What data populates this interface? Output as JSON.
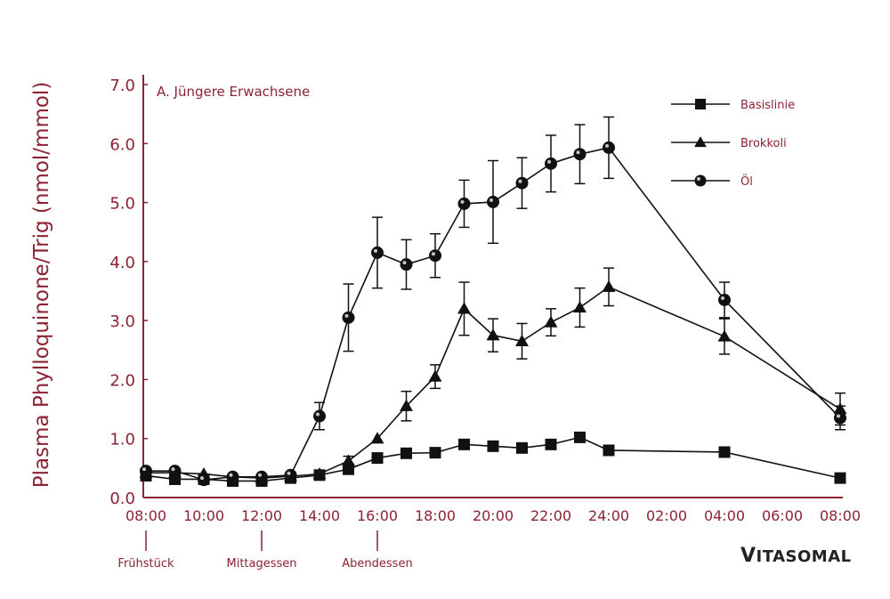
{
  "brand": {
    "first": "V",
    "rest": "ITASOMAL"
  },
  "chart_data": {
    "type": "line",
    "title": "A. Jüngere Erwachsene",
    "xlabel": "",
    "ylabel": "Plasma Phylloquinone/Trig (nmol/mmol)",
    "ylim": [
      0,
      7
    ],
    "yticks": [
      "0.0",
      "1.0",
      "2.0",
      "3.0",
      "4.0",
      "5.0",
      "6.0",
      "7.0"
    ],
    "x_unit": "clock hour (08:00 = 8, next-day 08:00 = 32)",
    "xlim": [
      8,
      32
    ],
    "xticks": [
      {
        "x": 8,
        "label": "08:00"
      },
      {
        "x": 10,
        "label": "10:00"
      },
      {
        "x": 12,
        "label": "12:00"
      },
      {
        "x": 14,
        "label": "14:00"
      },
      {
        "x": 16,
        "label": "16:00"
      },
      {
        "x": 18,
        "label": "18:00"
      },
      {
        "x": 20,
        "label": "20:00"
      },
      {
        "x": 22,
        "label": "22:00"
      },
      {
        "x": 24,
        "label": "24:00"
      },
      {
        "x": 26,
        "label": "02:00"
      },
      {
        "x": 28,
        "label": "04:00"
      },
      {
        "x": 30,
        "label": "06:00"
      },
      {
        "x": 32,
        "label": "08:00"
      }
    ],
    "annotations": [
      {
        "x": 8,
        "label": "Frühstück"
      },
      {
        "x": 12,
        "label": "Mittagessen"
      },
      {
        "x": 16,
        "label": "Abendessen"
      }
    ],
    "legend_position": "top-right",
    "series": [
      {
        "name": "Basislinie",
        "marker": "square",
        "x": [
          8,
          9,
          10,
          11,
          12,
          13,
          14,
          15,
          16,
          17,
          18,
          19,
          20,
          21,
          22,
          23,
          24,
          28,
          32
        ],
        "y": [
          0.37,
          0.31,
          0.31,
          0.28,
          0.28,
          0.33,
          0.38,
          0.48,
          0.67,
          0.75,
          0.76,
          0.9,
          0.87,
          0.84,
          0.9,
          1.02,
          0.8,
          0.77,
          0.33
        ],
        "err": [
          0,
          0,
          0,
          0,
          0,
          0,
          0,
          0,
          0,
          0,
          0,
          0,
          0,
          0,
          0,
          0,
          0,
          0,
          0
        ]
      },
      {
        "name": "Brokkoli",
        "marker": "triangle",
        "x": [
          8,
          9,
          10,
          11,
          12,
          13,
          14,
          15,
          16,
          17,
          18,
          19,
          20,
          21,
          22,
          23,
          24,
          28,
          32
        ],
        "y": [
          0.42,
          0.42,
          0.4,
          0.35,
          0.33,
          0.36,
          0.4,
          0.62,
          1.0,
          1.55,
          2.05,
          3.2,
          2.75,
          2.65,
          2.97,
          3.22,
          3.57,
          2.73,
          1.5
        ],
        "err": [
          0,
          0,
          0,
          0,
          0,
          0,
          0,
          0.08,
          0,
          0.25,
          0.2,
          0.45,
          0.28,
          0.3,
          0.23,
          0.33,
          0.32,
          0.3,
          0.27
        ]
      },
      {
        "name": "Öl",
        "marker": "circle",
        "x": [
          8,
          9,
          10,
          11,
          12,
          13,
          14,
          15,
          16,
          17,
          18,
          19,
          20,
          21,
          22,
          23,
          24,
          28,
          32
        ],
        "y": [
          0.45,
          0.45,
          0.3,
          0.35,
          0.35,
          0.38,
          1.38,
          3.05,
          4.15,
          3.95,
          4.1,
          4.98,
          5.01,
          5.33,
          5.66,
          5.82,
          5.93,
          3.35,
          1.35
        ],
        "err": [
          0,
          0,
          0,
          0,
          0,
          0,
          0.23,
          0.57,
          0.6,
          0.42,
          0.37,
          0.4,
          0.7,
          0.43,
          0.48,
          0.5,
          0.52,
          0.3,
          0.2
        ]
      }
    ]
  }
}
